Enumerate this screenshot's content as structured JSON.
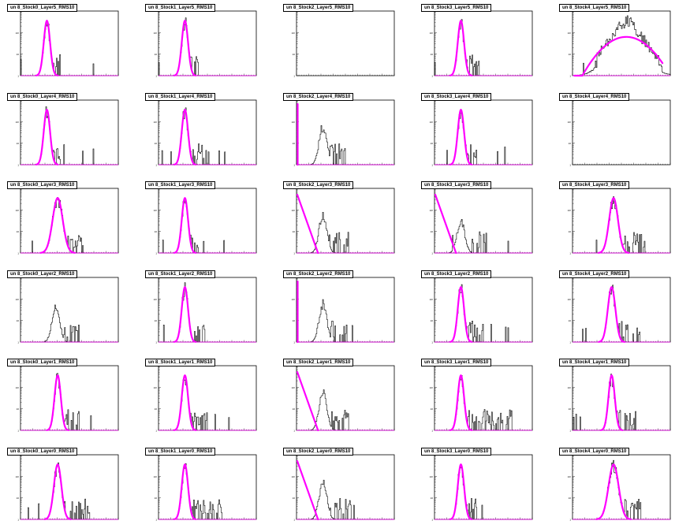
{
  "colors": {
    "hist": "#000000",
    "fit": "#ff00ff",
    "frame": "#000000",
    "background": "#ffffff"
  },
  "chart_data": [
    {
      "type": "histogram",
      "title": "un 8_Stock0_Layer5_RMS10",
      "log_y": true,
      "peak": 0.27,
      "width": 0.05,
      "height": 0.85,
      "tail": 0.02,
      "fit": "gauss",
      "empty": false
    },
    {
      "type": "histogram",
      "title": "un 8_Stock1_Layer5_RMS10",
      "log_y": true,
      "peak": 0.27,
      "width": 0.05,
      "height": 0.85,
      "tail": 0.01,
      "fit": "gauss",
      "empty": false
    },
    {
      "type": "histogram",
      "title": "un 8_Stock2_Layer5_RMS10",
      "log_y": true,
      "empty": true,
      "fit": "none"
    },
    {
      "type": "histogram",
      "title": "un 8_Stock3_Layer5_RMS10",
      "log_y": true,
      "peak": 0.27,
      "width": 0.05,
      "height": 0.85,
      "tail": 0.06,
      "fit": "gauss",
      "empty": false
    },
    {
      "type": "histogram",
      "title": "un 8_Stock4_Layer5_RMS10",
      "log_y": true,
      "peak": 0.55,
      "width": 0.25,
      "height": 0.85,
      "tail": 0.0,
      "fit": "wide",
      "empty": false
    },
    {
      "type": "histogram",
      "title": "un 8_Stock0_Layer4_RMS10",
      "log_y": true,
      "peak": 0.27,
      "width": 0.05,
      "height": 0.85,
      "tail": 0.05,
      "fit": "gauss",
      "empty": false
    },
    {
      "type": "histogram",
      "title": "un 8_Stock1_Layer4_RMS10",
      "log_y": true,
      "peak": 0.27,
      "width": 0.05,
      "height": 0.85,
      "tail": 0.12,
      "fit": "gauss",
      "empty": false
    },
    {
      "type": "histogram",
      "title": "un 8_Stock2_Layer4_RMS10",
      "log_y": true,
      "peak": 0.27,
      "width": 0.06,
      "height": 0.6,
      "tail": 0.12,
      "fit": "spike",
      "empty": false
    },
    {
      "type": "histogram",
      "title": "un 8_Stock3_Layer4_RMS10",
      "log_y": true,
      "peak": 0.27,
      "width": 0.05,
      "height": 0.85,
      "tail": 0.03,
      "fit": "gauss",
      "empty": false
    },
    {
      "type": "histogram",
      "title": "un 8_Stock4_Layer4_RMS10",
      "log_y": true,
      "empty": true,
      "fit": "none"
    },
    {
      "type": "histogram",
      "title": "un 8_Stock0_Layer3_RMS10",
      "log_y": true,
      "peak": 0.38,
      "width": 0.08,
      "height": 0.85,
      "tail": 0.1,
      "fit": "gauss",
      "empty": false
    },
    {
      "type": "histogram",
      "title": "un 8_Stock1_Layer3_RMS10",
      "log_y": true,
      "peak": 0.27,
      "width": 0.05,
      "height": 0.85,
      "tail": 0.05,
      "fit": "gauss",
      "empty": false
    },
    {
      "type": "histogram",
      "title": "un 8_Stock2_Layer3_RMS10",
      "log_y": true,
      "peak": 0.27,
      "width": 0.06,
      "height": 0.6,
      "tail": 0.12,
      "fit": "line",
      "empty": false
    },
    {
      "type": "histogram",
      "title": "un 8_Stock3_Layer3_RMS10",
      "log_y": true,
      "peak": 0.27,
      "width": 0.06,
      "height": 0.5,
      "tail": 0.12,
      "fit": "line",
      "empty": false
    },
    {
      "type": "histogram",
      "title": "un 8_Stock4_Layer3_RMS10",
      "log_y": true,
      "peak": 0.42,
      "width": 0.07,
      "height": 0.85,
      "tail": 0.2,
      "fit": "gauss",
      "empty": false
    },
    {
      "type": "histogram",
      "title": "un 8_Stock0_Layer2_RMS10",
      "log_y": true,
      "peak": 0.36,
      "width": 0.06,
      "height": 0.55,
      "tail": 0.12,
      "fit": "none",
      "empty": false
    },
    {
      "type": "histogram",
      "title": "un 8_Stock1_Layer2_RMS10",
      "log_y": true,
      "peak": 0.27,
      "width": 0.05,
      "height": 0.85,
      "tail": 0.1,
      "fit": "gauss",
      "empty": false
    },
    {
      "type": "histogram",
      "title": "un 8_Stock2_Layer2_RMS10",
      "log_y": true,
      "peak": 0.27,
      "width": 0.06,
      "height": 0.6,
      "tail": 0.12,
      "fit": "spike",
      "empty": false
    },
    {
      "type": "histogram",
      "title": "un 8_Stock3_Layer2_RMS10",
      "log_y": true,
      "peak": 0.27,
      "width": 0.05,
      "height": 0.85,
      "tail": 0.1,
      "fit": "gauss",
      "empty": false
    },
    {
      "type": "histogram",
      "title": "un 8_Stock4_Layer2_RMS10",
      "log_y": true,
      "peak": 0.4,
      "width": 0.06,
      "height": 0.85,
      "tail": 0.15,
      "fit": "gauss",
      "empty": false
    },
    {
      "type": "histogram",
      "title": "un 8_Stock0_Layer1_RMS10",
      "log_y": true,
      "peak": 0.38,
      "width": 0.05,
      "height": 0.85,
      "tail": 0.1,
      "fit": "gauss",
      "empty": false
    },
    {
      "type": "histogram",
      "title": "un 8_Stock1_Layer1_RMS10",
      "log_y": true,
      "peak": 0.27,
      "width": 0.05,
      "height": 0.85,
      "tail": 0.1,
      "fit": "gauss",
      "empty": false
    },
    {
      "type": "histogram",
      "title": "un 8_Stock2_Layer1_RMS10",
      "log_y": true,
      "peak": 0.27,
      "width": 0.06,
      "height": 0.6,
      "tail": 0.15,
      "fit": "line",
      "empty": false
    },
    {
      "type": "histogram",
      "title": "un 8_Stock3_Layer1_RMS10",
      "log_y": true,
      "peak": 0.27,
      "width": 0.05,
      "height": 0.85,
      "tail": 0.4,
      "fit": "gauss",
      "empty": false
    },
    {
      "type": "histogram",
      "title": "un 8_Stock4_Layer1_RMS10",
      "log_y": true,
      "peak": 0.4,
      "width": 0.05,
      "height": 0.85,
      "tail": 0.12,
      "fit": "gauss",
      "empty": false
    },
    {
      "type": "histogram",
      "title": "un 8_Stock0_Layer0_RMS10",
      "log_y": true,
      "peak": 0.38,
      "width": 0.06,
      "height": 0.85,
      "tail": 0.2,
      "fit": "gauss",
      "empty": false
    },
    {
      "type": "histogram",
      "title": "un 8_Stock1_Layer0_RMS10",
      "log_y": true,
      "peak": 0.27,
      "width": 0.05,
      "height": 0.85,
      "tail": 0.25,
      "fit": "gauss",
      "empty": false
    },
    {
      "type": "histogram",
      "title": "un 8_Stock2_Layer0_RMS10",
      "log_y": true,
      "peak": 0.27,
      "width": 0.06,
      "height": 0.6,
      "tail": 0.15,
      "fit": "line",
      "empty": false
    },
    {
      "type": "histogram",
      "title": "un 8_Stock3_Layer0_RMS10",
      "log_y": true,
      "peak": 0.27,
      "width": 0.05,
      "height": 0.85,
      "tail": 0.05,
      "fit": "gauss",
      "empty": false
    },
    {
      "type": "histogram",
      "title": "un 8_Stock4_Layer0_RMS10",
      "log_y": true,
      "peak": 0.42,
      "width": 0.08,
      "height": 0.85,
      "tail": 0.15,
      "fit": "gauss",
      "empty": false
    }
  ]
}
